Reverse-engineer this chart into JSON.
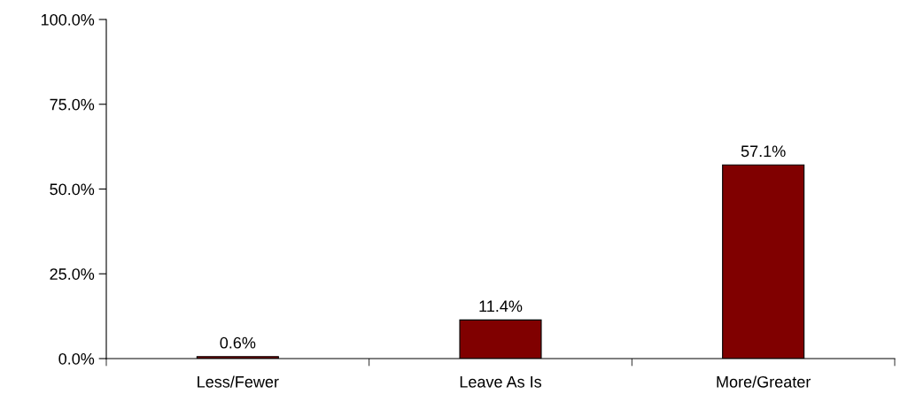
{
  "chart_data": {
    "type": "bar",
    "categories": [
      "Less/Fewer",
      "Leave As Is",
      "More/Greater"
    ],
    "values": [
      0.6,
      11.4,
      57.1
    ],
    "color": "#800000",
    "value_labels": [
      "0.6%",
      "11.4%",
      "57.1%"
    ],
    "ylim": [
      0,
      100
    ],
    "yticks": [
      {
        "value": 0,
        "label": "0.0%"
      },
      {
        "value": 25,
        "label": "25.0%"
      },
      {
        "value": 50,
        "label": "50.0%"
      },
      {
        "value": 75,
        "label": "75.0%"
      },
      {
        "value": 100,
        "label": "100.0%"
      }
    ],
    "grid": false,
    "legend": false
  }
}
